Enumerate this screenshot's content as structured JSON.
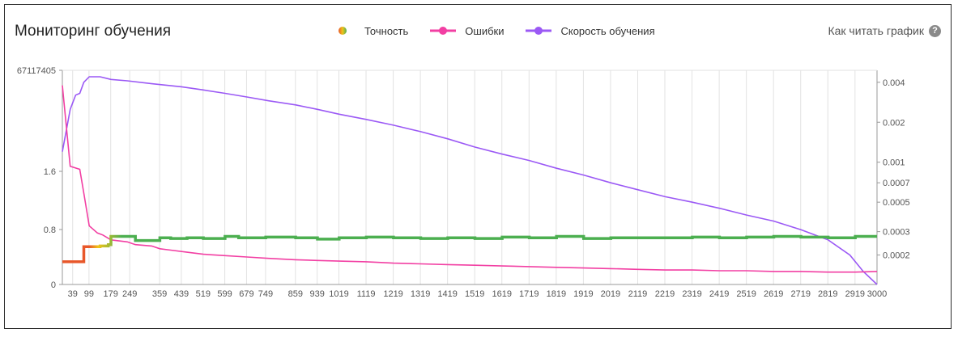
{
  "header": {
    "title": "Мониторинг обучения",
    "help_label": "Как читать график",
    "help_icon": "question-circle-icon"
  },
  "legend": [
    {
      "label": "Точность",
      "color": "#4caf50",
      "gradient": [
        "#e8572a",
        "#f0c419",
        "#4caf50"
      ]
    },
    {
      "label": "Ошибки",
      "color": "#f23fa3"
    },
    {
      "label": "Скорость обучения",
      "color": "#9b59f5"
    }
  ],
  "chart_data": {
    "type": "line",
    "x_ticks": [
      39,
      99,
      179,
      249,
      359,
      439,
      519,
      599,
      679,
      749,
      859,
      939,
      1019,
      1119,
      1219,
      1319,
      1419,
      1519,
      1619,
      1719,
      1819,
      1919,
      2019,
      2119,
      2219,
      2319,
      2419,
      2519,
      2619,
      2719,
      2819,
      2919,
      3000
    ],
    "left_y_ticks": [
      "0",
      "0.8",
      "1.6",
      "67117405"
    ],
    "right_y_ticks": [
      "0.004",
      "0.002",
      "0.001",
      "0.0007",
      "0.0005",
      "0.0003",
      "0.0002"
    ],
    "series": [
      {
        "name": "Точность",
        "axis": "left",
        "points": [
          [
            1,
            0.33
          ],
          [
            50,
            0.33
          ],
          [
            65,
            0.33
          ],
          [
            80,
            0.55
          ],
          [
            100,
            0.55
          ],
          [
            140,
            0.56
          ],
          [
            170,
            0.58
          ],
          [
            180,
            0.7
          ],
          [
            240,
            0.7
          ],
          [
            270,
            0.64
          ],
          [
            330,
            0.64
          ],
          [
            360,
            0.68
          ],
          [
            400,
            0.67
          ],
          [
            460,
            0.68
          ],
          [
            520,
            0.67
          ],
          [
            600,
            0.7
          ],
          [
            650,
            0.68
          ],
          [
            750,
            0.69
          ],
          [
            860,
            0.68
          ],
          [
            940,
            0.66
          ],
          [
            1020,
            0.68
          ],
          [
            1120,
            0.69
          ],
          [
            1220,
            0.68
          ],
          [
            1320,
            0.67
          ],
          [
            1420,
            0.68
          ],
          [
            1520,
            0.67
          ],
          [
            1620,
            0.69
          ],
          [
            1720,
            0.68
          ],
          [
            1820,
            0.7
          ],
          [
            1920,
            0.67
          ],
          [
            2020,
            0.68
          ],
          [
            2120,
            0.68
          ],
          [
            2220,
            0.68
          ],
          [
            2320,
            0.69
          ],
          [
            2420,
            0.68
          ],
          [
            2520,
            0.69
          ],
          [
            2620,
            0.7
          ],
          [
            2720,
            0.69
          ],
          [
            2820,
            0.68
          ],
          [
            2920,
            0.7
          ],
          [
            3000,
            0.7
          ]
        ]
      },
      {
        "name": "Ошибки",
        "axis": "left",
        "points": [
          [
            1,
            2.45
          ],
          [
            30,
            1.65
          ],
          [
            65,
            1.62
          ],
          [
            80,
            1.3
          ],
          [
            100,
            0.85
          ],
          [
            130,
            0.75
          ],
          [
            150,
            0.72
          ],
          [
            180,
            0.65
          ],
          [
            240,
            0.62
          ],
          [
            270,
            0.58
          ],
          [
            330,
            0.56
          ],
          [
            360,
            0.52
          ],
          [
            400,
            0.5
          ],
          [
            460,
            0.47
          ],
          [
            520,
            0.44
          ],
          [
            600,
            0.42
          ],
          [
            680,
            0.4
          ],
          [
            760,
            0.38
          ],
          [
            860,
            0.36
          ],
          [
            940,
            0.35
          ],
          [
            1020,
            0.34
          ],
          [
            1120,
            0.33
          ],
          [
            1220,
            0.31
          ],
          [
            1320,
            0.3
          ],
          [
            1420,
            0.29
          ],
          [
            1520,
            0.28
          ],
          [
            1620,
            0.27
          ],
          [
            1720,
            0.26
          ],
          [
            1820,
            0.25
          ],
          [
            1920,
            0.24
          ],
          [
            2020,
            0.23
          ],
          [
            2120,
            0.22
          ],
          [
            2220,
            0.21
          ],
          [
            2320,
            0.21
          ],
          [
            2420,
            0.2
          ],
          [
            2520,
            0.2
          ],
          [
            2620,
            0.19
          ],
          [
            2720,
            0.19
          ],
          [
            2820,
            0.18
          ],
          [
            2920,
            0.18
          ],
          [
            3000,
            0.19
          ]
        ]
      },
      {
        "name": "Скорость обучения",
        "axis": "right",
        "points": [
          [
            1,
            0.0012
          ],
          [
            30,
            0.0025
          ],
          [
            50,
            0.0032
          ],
          [
            65,
            0.0033
          ],
          [
            80,
            0.004
          ],
          [
            100,
            0.0044
          ],
          [
            140,
            0.0044
          ],
          [
            180,
            0.0042
          ],
          [
            240,
            0.0041
          ],
          [
            330,
            0.0039
          ],
          [
            440,
            0.0037
          ],
          [
            520,
            0.0035
          ],
          [
            600,
            0.0033
          ],
          [
            680,
            0.0031
          ],
          [
            760,
            0.0029
          ],
          [
            860,
            0.0027
          ],
          [
            940,
            0.0025
          ],
          [
            1020,
            0.0023
          ],
          [
            1120,
            0.0021
          ],
          [
            1220,
            0.0019
          ],
          [
            1320,
            0.0017
          ],
          [
            1420,
            0.0015
          ],
          [
            1520,
            0.0013
          ],
          [
            1620,
            0.00115
          ],
          [
            1720,
            0.00103
          ],
          [
            1820,
            0.0009
          ],
          [
            1920,
            0.0008
          ],
          [
            2020,
            0.0007
          ],
          [
            2120,
            0.00062
          ],
          [
            2220,
            0.00055
          ],
          [
            2320,
            0.0005
          ],
          [
            2420,
            0.00045
          ],
          [
            2520,
            0.0004
          ],
          [
            2620,
            0.00036
          ],
          [
            2720,
            0.00031
          ],
          [
            2820,
            0.00026
          ],
          [
            2900,
            0.0002
          ],
          [
            2950,
            0.00015
          ],
          [
            3000,
            0.00012
          ]
        ]
      }
    ]
  }
}
